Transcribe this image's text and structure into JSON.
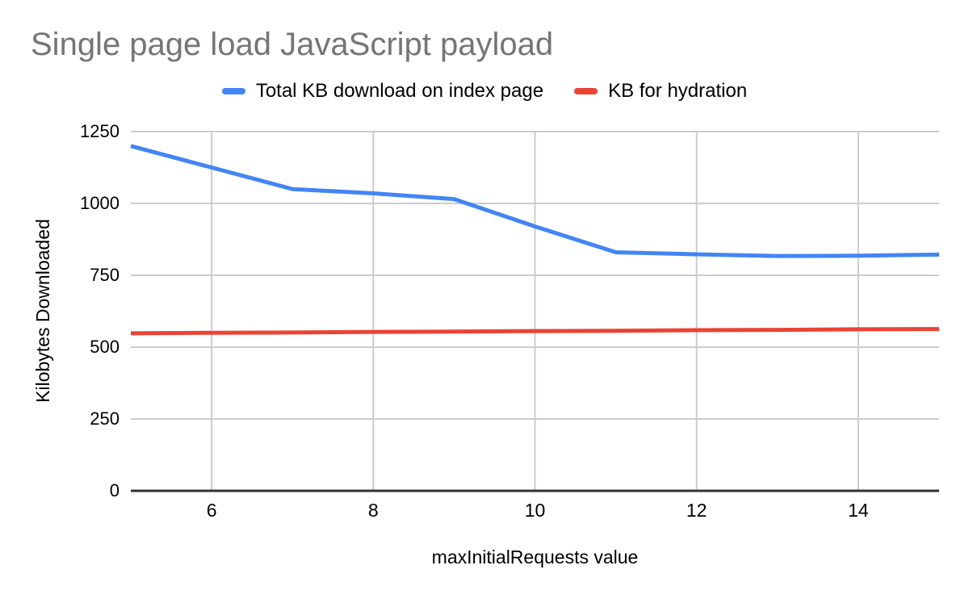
{
  "chart_data": {
    "type": "line",
    "title": "Single page load JavaScript payload",
    "xlabel": "maxInitialRequests value",
    "ylabel": "Kilobytes Downloaded",
    "x": [
      5,
      6,
      7,
      8,
      9,
      10,
      11,
      12,
      13,
      14,
      15
    ],
    "series": [
      {
        "name": "Total KB download on index page",
        "color": "#4285F4",
        "values": [
          1200,
          1125,
          1050,
          1035,
          1015,
          920,
          830,
          823,
          817,
          818,
          822
        ]
      },
      {
        "name": "KB for hydration",
        "color": "#EA4335",
        "values": [
          548,
          550,
          551,
          553,
          554,
          556,
          557,
          559,
          560,
          562,
          563
        ]
      }
    ],
    "xlim": [
      5,
      15
    ],
    "ylim": [
      0,
      1250
    ],
    "xticks": [
      6,
      8,
      10,
      12,
      14
    ],
    "yticks": [
      0,
      250,
      500,
      750,
      1000,
      1250
    ],
    "grid": true,
    "legend_position": "top",
    "styles": {
      "title_color": "#757575",
      "gridline_color": "#cccccc",
      "axis_line_color": "#333333",
      "label_color": "#000000",
      "background": "#ffffff",
      "line_width": 5
    }
  }
}
